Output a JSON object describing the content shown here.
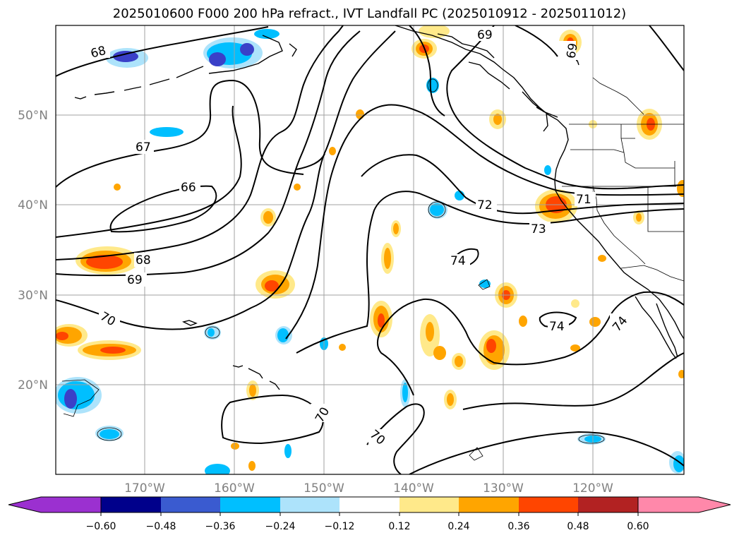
{
  "title": "2025010600 F000 200 hPa refract., IVT Landfall PC (2025010912 - 2025011012)",
  "lat_labels": [
    "50°N",
    "40°N",
    "30°N",
    "20°N"
  ],
  "lon_labels": [
    "170°W",
    "160°W",
    "150°W",
    "140°W",
    "130°W",
    "120°W"
  ],
  "contour_labels": [
    "68",
    "69",
    "69",
    "67",
    "66",
    "72",
    "71",
    "73",
    "68",
    "69",
    "74",
    "70",
    "74",
    "74",
    "70",
    "70"
  ],
  "colorbar": {
    "tick_labels": [
      "−0.60",
      "−0.48",
      "−0.36",
      "−0.24",
      "−0.12",
      "0.12",
      "0.24",
      "0.36",
      "0.48",
      "0.60"
    ],
    "colors": [
      "#9b30d0",
      "#00008b",
      "#3a5bd0",
      "#00bfff",
      "#ade3fb",
      "#ffffff",
      "#ffe98a",
      "#ffa500",
      "#ff4500",
      "#b22222",
      "#ff88aa"
    ]
  },
  "palette": {
    "neg_deep": "#3a40c8",
    "neg_mid": "#00bfff",
    "neg_light": "#ade3fb",
    "pos_light": "#ffe98a",
    "pos_mid": "#ffa500",
    "pos_deep": "#ff4500"
  }
}
